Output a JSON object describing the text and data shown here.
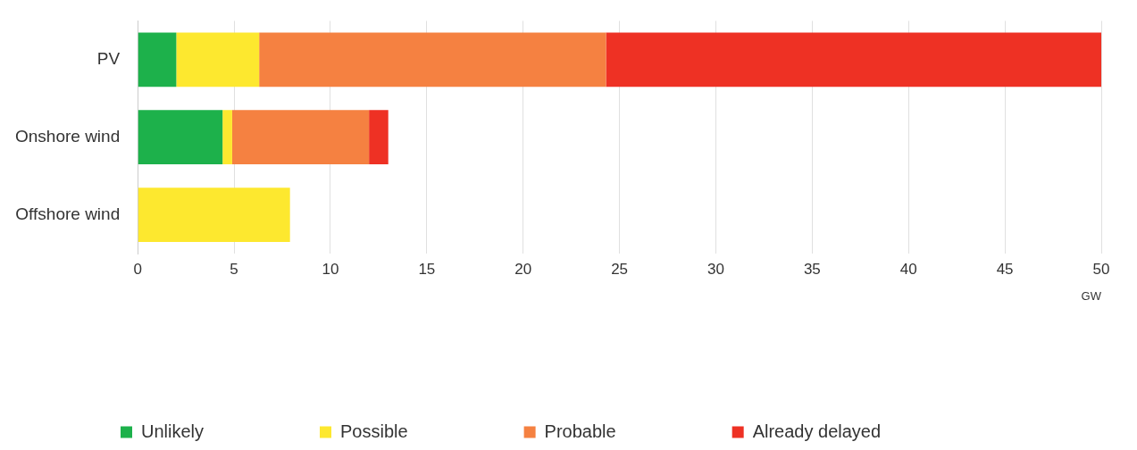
{
  "chart_data": {
    "type": "bar",
    "orientation": "horizontal",
    "stacked": true,
    "categories": [
      "PV",
      "Onshore wind",
      "Offshore wind"
    ],
    "series": [
      {
        "name": "Unlikely",
        "color": "#1db14b",
        "values": [
          2.0,
          4.4,
          0
        ]
      },
      {
        "name": "Possible",
        "color": "#fde82f",
        "values": [
          4.3,
          0.5,
          7.9
        ]
      },
      {
        "name": "Probable",
        "color": "#f58141",
        "values": [
          18.0,
          7.1,
          0
        ]
      },
      {
        "name": "Already delayed",
        "color": "#ee3124",
        "values": [
          25.7,
          1.0,
          0
        ]
      }
    ],
    "xlabel": "GW",
    "xlim": [
      0,
      50
    ],
    "xticks": [
      0,
      5,
      10,
      15,
      20,
      25,
      30,
      35,
      40,
      45,
      50
    ],
    "grid": "x",
    "legend": "bottom"
  }
}
